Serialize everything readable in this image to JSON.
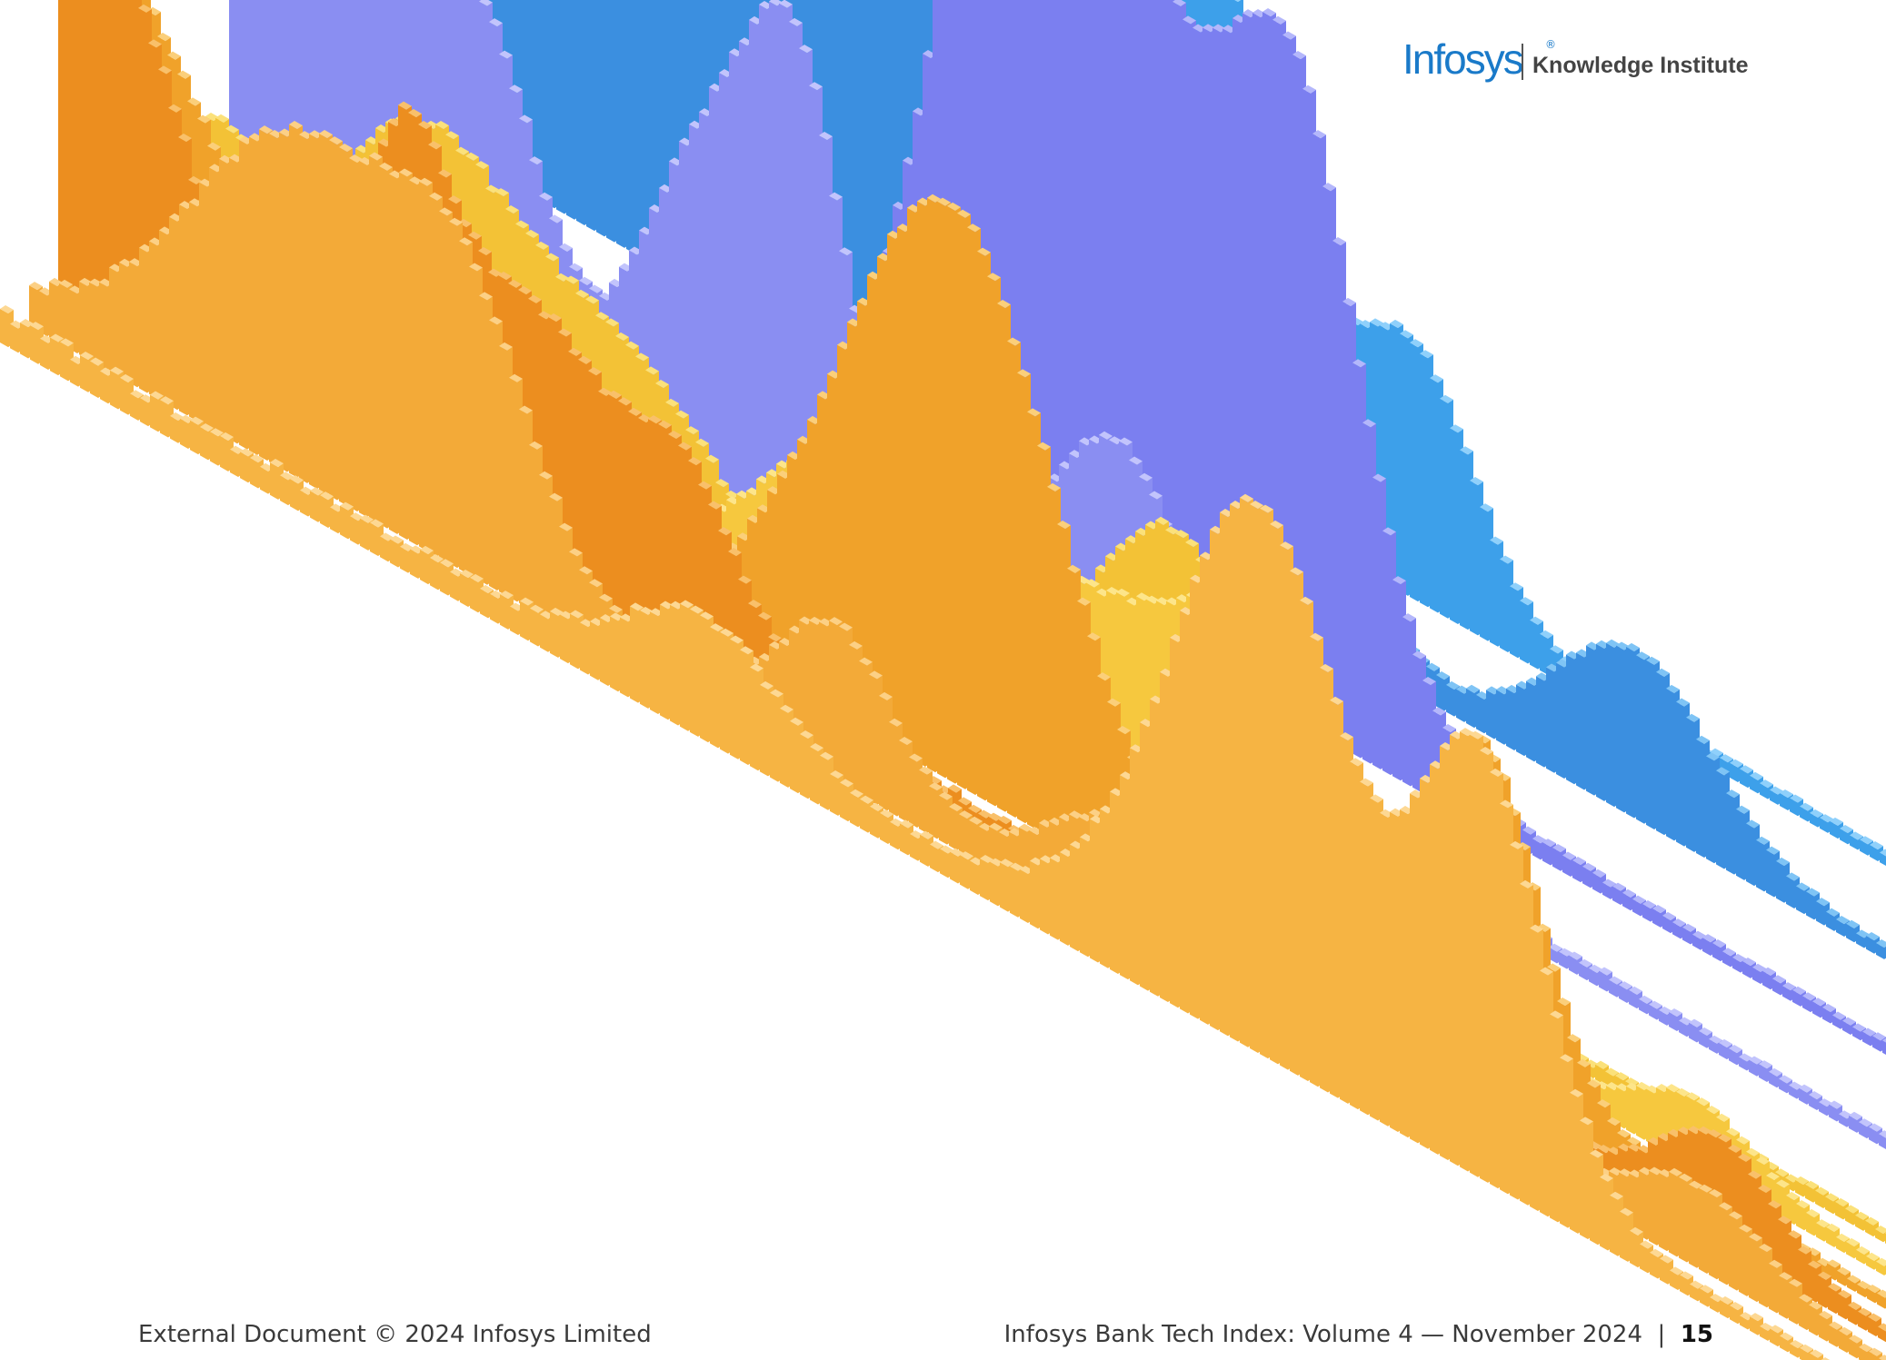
{
  "header": {
    "logo": "Infosys",
    "registered": "®",
    "subtitle": "Knowledge Institute"
  },
  "footer": {
    "left": "External Document © 2024 Infosys Limited",
    "right": "Infosys Bank Tech Index: Volume 4 — November 2024",
    "separator": "|",
    "page": "15"
  }
}
